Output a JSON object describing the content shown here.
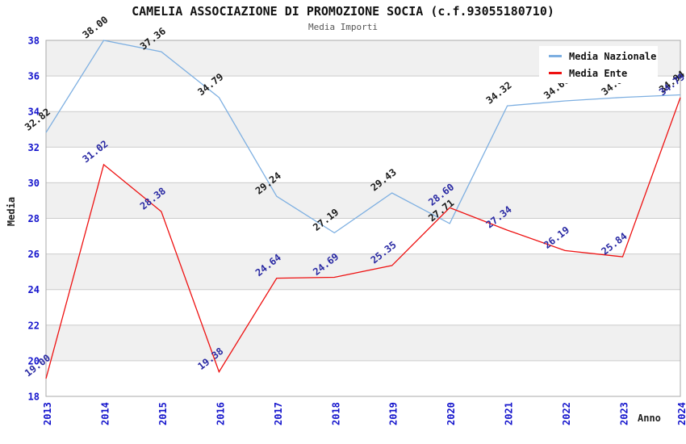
{
  "header": {
    "title": "CAMELIA ASSOCIAZIONE DI PROMOZIONE SOCIA (c.f.93055180710)",
    "subtitle": "Media Importi"
  },
  "legend": {
    "items": [
      {
        "label": "Media Nazionale",
        "color": "#7DAFE1"
      },
      {
        "label": "Media Ente",
        "color": "#EE1111"
      }
    ]
  },
  "axes": {
    "y_label": "Media",
    "x_label": "Anno",
    "tick_color": "#1414CC"
  },
  "chart_data": {
    "type": "line",
    "title": "CAMELIA ASSOCIAZIONE DI PROMOZIONE SOCIA (c.f.93055180710)",
    "subtitle": "Media Importi",
    "xlabel": "Anno",
    "ylabel": "Media",
    "ylim": [
      18,
      38
    ],
    "ytick_step": 2,
    "grid": true,
    "legend_position": "top-right",
    "categories": [
      "2013",
      "2014",
      "2015",
      "2016",
      "2017",
      "2018",
      "2019",
      "2020",
      "2021",
      "2022",
      "2023",
      "2024"
    ],
    "series": [
      {
        "name": "Media Nazionale",
        "color": "#7DAFE1",
        "label_color": "#1a1a1a",
        "values": [
          32.82,
          38.0,
          37.36,
          34.79,
          29.24,
          27.19,
          29.43,
          27.71,
          34.32,
          34.6,
          34.8,
          34.94
        ]
      },
      {
        "name": "Media Ente",
        "color": "#EE1111",
        "label_color": "#2929A3",
        "values": [
          19.0,
          31.02,
          28.38,
          19.38,
          24.64,
          24.69,
          25.35,
          28.6,
          27.34,
          26.19,
          25.84,
          34.79
        ]
      }
    ],
    "style": {
      "band_color": "#f0f0f0",
      "grid_color": "#cccccc",
      "border_color": "#aaaaaa"
    }
  }
}
